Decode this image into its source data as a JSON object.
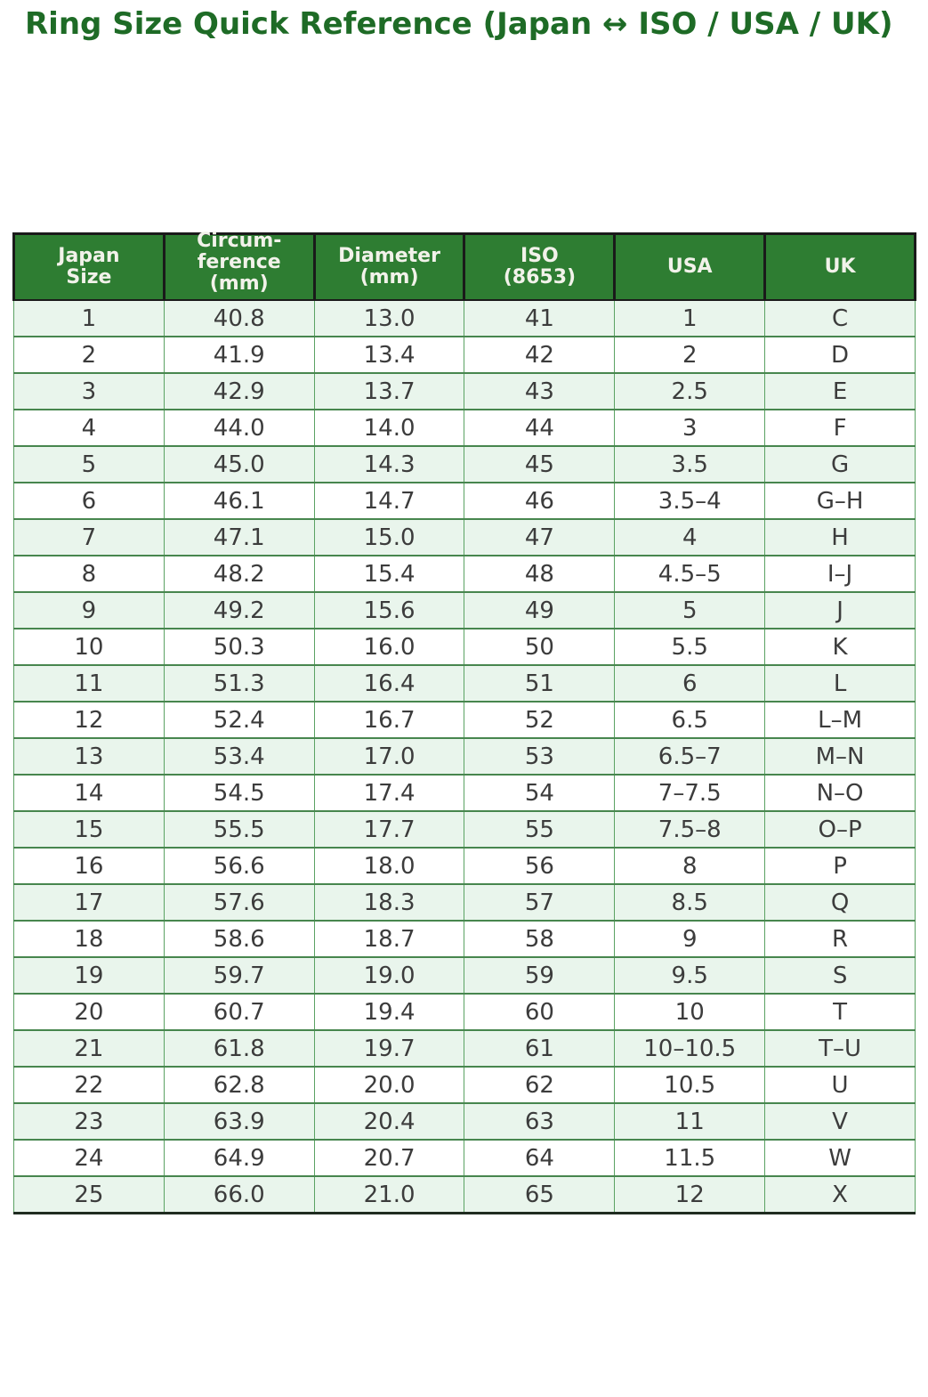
{
  "title": "Ring Size Quick Reference (Japan ↔ ISO / USA / UK)",
  "colors": {
    "title_text": "#1e6b26",
    "header_bg": "#2e7d32",
    "header_text": "#f2f2ea",
    "row_stripe": "#e9f5ec",
    "row_alt": "#ffffff",
    "grid_green": "#47864e",
    "grid_green_light": "#5ba263",
    "outer_dark": "#1a1a1a",
    "body_text": "#3c3c3c"
  },
  "chart_data": {
    "type": "table",
    "title": "Ring Size Quick Reference (Japan ↔ ISO / USA / UK)",
    "columns": [
      "Japan\nSize",
      "Circum-\nference\n(mm)",
      "Diameter\n(mm)",
      "ISO\n(8653)",
      "USA",
      "UK"
    ],
    "rows": [
      [
        "1",
        "40.8",
        "13.0",
        "41",
        "1",
        "C"
      ],
      [
        "2",
        "41.9",
        "13.4",
        "42",
        "2",
        "D"
      ],
      [
        "3",
        "42.9",
        "13.7",
        "43",
        "2.5",
        "E"
      ],
      [
        "4",
        "44.0",
        "14.0",
        "44",
        "3",
        "F"
      ],
      [
        "5",
        "45.0",
        "14.3",
        "45",
        "3.5",
        "G"
      ],
      [
        "6",
        "46.1",
        "14.7",
        "46",
        "3.5–4",
        "G–H"
      ],
      [
        "7",
        "47.1",
        "15.0",
        "47",
        "4",
        "H"
      ],
      [
        "8",
        "48.2",
        "15.4",
        "48",
        "4.5–5",
        "I–J"
      ],
      [
        "9",
        "49.2",
        "15.6",
        "49",
        "5",
        "J"
      ],
      [
        "10",
        "50.3",
        "16.0",
        "50",
        "5.5",
        "K"
      ],
      [
        "11",
        "51.3",
        "16.4",
        "51",
        "6",
        "L"
      ],
      [
        "12",
        "52.4",
        "16.7",
        "52",
        "6.5",
        "L–M"
      ],
      [
        "13",
        "53.4",
        "17.0",
        "53",
        "6.5–7",
        "M–N"
      ],
      [
        "14",
        "54.5",
        "17.4",
        "54",
        "7–7.5",
        "N–O"
      ],
      [
        "15",
        "55.5",
        "17.7",
        "55",
        "7.5–8",
        "O–P"
      ],
      [
        "16",
        "56.6",
        "18.0",
        "56",
        "8",
        "P"
      ],
      [
        "17",
        "57.6",
        "18.3",
        "57",
        "8.5",
        "Q"
      ],
      [
        "18",
        "58.6",
        "18.7",
        "58",
        "9",
        "R"
      ],
      [
        "19",
        "59.7",
        "19.0",
        "59",
        "9.5",
        "S"
      ],
      [
        "20",
        "60.7",
        "19.4",
        "60",
        "10",
        "T"
      ],
      [
        "21",
        "61.8",
        "19.7",
        "61",
        "10–10.5",
        "T–U"
      ],
      [
        "22",
        "62.8",
        "20.0",
        "62",
        "10.5",
        "U"
      ],
      [
        "23",
        "63.9",
        "20.4",
        "63",
        "11",
        "V"
      ],
      [
        "24",
        "64.9",
        "20.7",
        "64",
        "11.5",
        "W"
      ],
      [
        "25",
        "66.0",
        "21.0",
        "65",
        "12",
        "X"
      ]
    ]
  }
}
